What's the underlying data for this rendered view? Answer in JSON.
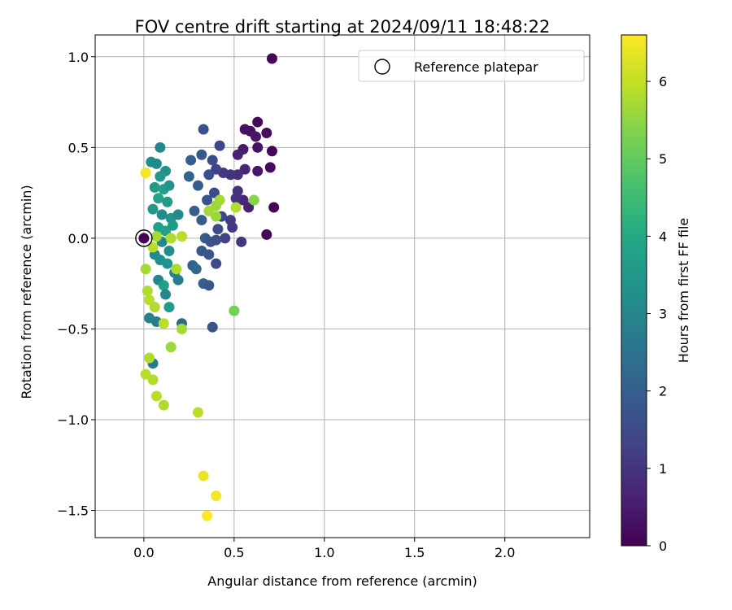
{
  "chart_data": {
    "type": "scatter",
    "title": "FOV centre drift starting at 2024/09/11 18:48:22",
    "xlabel": "Angular distance from reference (arcmin)",
    "ylabel": "Rotation from reference (arcmin)",
    "xlim": [
      -0.27,
      2.47
    ],
    "ylim": [
      -1.65,
      1.12
    ],
    "xticks": [
      0.0,
      0.5,
      1.0,
      1.5,
      2.0
    ],
    "xtick_labels": [
      "0.0",
      "0.5",
      "1.0",
      "1.5",
      "2.0"
    ],
    "yticks": [
      1.0,
      0.5,
      0.0,
      -0.5,
      -1.0,
      -1.5
    ],
    "ytick_labels": [
      "1.0",
      "0.5",
      "0.0",
      "−0.5",
      "−1.0",
      "−1.5"
    ],
    "grid": true,
    "legend": {
      "placement": "top-right",
      "entries": [
        "Reference platepar"
      ]
    },
    "colorbar": {
      "label": "Hours from first FF file",
      "colormap": "viridis",
      "range": [
        0,
        6.6
      ],
      "ticks": [
        0,
        1,
        2,
        3,
        4,
        5,
        6
      ],
      "tick_labels": [
        "0",
        "1",
        "2",
        "3",
        "4",
        "5",
        "6"
      ]
    },
    "reference_point": {
      "x": 0.0,
      "y": 0.0
    },
    "points": [
      {
        "x": 0.71,
        "y": 0.99,
        "h": 0.1
      },
      {
        "x": 0.63,
        "y": 0.64,
        "h": 0.15
      },
      {
        "x": 0.56,
        "y": 0.6,
        "h": 0.3
      },
      {
        "x": 0.59,
        "y": 0.59,
        "h": 0.3
      },
      {
        "x": 0.68,
        "y": 0.58,
        "h": 0.2
      },
      {
        "x": 0.62,
        "y": 0.56,
        "h": 0.4
      },
      {
        "x": 0.33,
        "y": 0.6,
        "h": 1.6
      },
      {
        "x": 0.71,
        "y": 0.48,
        "h": 0.1
      },
      {
        "x": 0.63,
        "y": 0.5,
        "h": 0.3
      },
      {
        "x": 0.55,
        "y": 0.49,
        "h": 0.5
      },
      {
        "x": 0.52,
        "y": 0.46,
        "h": 0.6
      },
      {
        "x": 0.42,
        "y": 0.51,
        "h": 1.4
      },
      {
        "x": 0.32,
        "y": 0.46,
        "h": 1.8
      },
      {
        "x": 0.26,
        "y": 0.43,
        "h": 2.0
      },
      {
        "x": 0.38,
        "y": 0.43,
        "h": 1.5
      },
      {
        "x": 0.56,
        "y": 0.38,
        "h": 0.7
      },
      {
        "x": 0.52,
        "y": 0.35,
        "h": 0.9
      },
      {
        "x": 0.48,
        "y": 0.35,
        "h": 1.0
      },
      {
        "x": 0.44,
        "y": 0.36,
        "h": 1.1
      },
      {
        "x": 0.4,
        "y": 0.38,
        "h": 1.3
      },
      {
        "x": 0.36,
        "y": 0.35,
        "h": 1.6
      },
      {
        "x": 0.63,
        "y": 0.37,
        "h": 0.4
      },
      {
        "x": 0.7,
        "y": 0.39,
        "h": 0.2
      },
      {
        "x": 0.72,
        "y": 0.17,
        "h": 0.05
      },
      {
        "x": 0.68,
        "y": 0.02,
        "h": 0.1
      },
      {
        "x": 0.58,
        "y": 0.17,
        "h": 0.6
      },
      {
        "x": 0.55,
        "y": 0.21,
        "h": 0.7
      },
      {
        "x": 0.52,
        "y": 0.26,
        "h": 0.9
      },
      {
        "x": 0.51,
        "y": 0.22,
        "h": 1.0
      },
      {
        "x": 0.48,
        "y": 0.1,
        "h": 1.2
      },
      {
        "x": 0.43,
        "y": 0.12,
        "h": 1.4
      },
      {
        "x": 0.41,
        "y": 0.05,
        "h": 1.5
      },
      {
        "x": 0.39,
        "y": 0.25,
        "h": 1.5
      },
      {
        "x": 0.35,
        "y": 0.21,
        "h": 1.7
      },
      {
        "x": 0.32,
        "y": 0.1,
        "h": 1.9
      },
      {
        "x": 0.3,
        "y": 0.29,
        "h": 1.9
      },
      {
        "x": 0.28,
        "y": 0.15,
        "h": 2.0
      },
      {
        "x": 0.25,
        "y": 0.34,
        "h": 2.1
      },
      {
        "x": 0.34,
        "y": 0.0,
        "h": 1.9
      },
      {
        "x": 0.37,
        "y": -0.02,
        "h": 1.7
      },
      {
        "x": 0.4,
        "y": -0.01,
        "h": 1.6
      },
      {
        "x": 0.45,
        "y": 0.0,
        "h": 1.3
      },
      {
        "x": 0.54,
        "y": -0.02,
        "h": 1.0
      },
      {
        "x": 0.49,
        "y": 0.06,
        "h": 1.1
      },
      {
        "x": 0.36,
        "y": -0.09,
        "h": 1.7
      },
      {
        "x": 0.32,
        "y": -0.07,
        "h": 1.8
      },
      {
        "x": 0.4,
        "y": -0.14,
        "h": 1.5
      },
      {
        "x": 0.27,
        "y": -0.15,
        "h": 2.1
      },
      {
        "x": 0.29,
        "y": -0.17,
        "h": 2.2
      },
      {
        "x": 0.33,
        "y": -0.25,
        "h": 2.0
      },
      {
        "x": 0.36,
        "y": -0.26,
        "h": 1.8
      },
      {
        "x": 0.38,
        "y": -0.49,
        "h": 1.7
      },
      {
        "x": 0.21,
        "y": -0.47,
        "h": 2.3
      },
      {
        "x": 0.09,
        "y": 0.5,
        "h": 3.0
      },
      {
        "x": 0.04,
        "y": 0.42,
        "h": 3.2
      },
      {
        "x": 0.07,
        "y": 0.41,
        "h": 3.1
      },
      {
        "x": 0.12,
        "y": 0.37,
        "h": 3.3
      },
      {
        "x": 0.09,
        "y": 0.34,
        "h": 3.5
      },
      {
        "x": 0.06,
        "y": 0.28,
        "h": 3.6
      },
      {
        "x": 0.11,
        "y": 0.27,
        "h": 3.7
      },
      {
        "x": 0.14,
        "y": 0.29,
        "h": 3.4
      },
      {
        "x": 0.08,
        "y": 0.22,
        "h": 3.8
      },
      {
        "x": 0.13,
        "y": 0.2,
        "h": 3.6
      },
      {
        "x": 0.05,
        "y": 0.16,
        "h": 3.5
      },
      {
        "x": 0.1,
        "y": 0.13,
        "h": 3.2
      },
      {
        "x": 0.15,
        "y": 0.11,
        "h": 3.4
      },
      {
        "x": 0.19,
        "y": 0.13,
        "h": 3.1
      },
      {
        "x": 0.08,
        "y": 0.06,
        "h": 3.7
      },
      {
        "x": 0.12,
        "y": 0.04,
        "h": 3.8
      },
      {
        "x": 0.16,
        "y": 0.07,
        "h": 3.6
      },
      {
        "x": 0.1,
        "y": -0.02,
        "h": 3.0
      },
      {
        "x": 0.06,
        "y": -0.09,
        "h": 3.1
      },
      {
        "x": 0.14,
        "y": -0.07,
        "h": 3.2
      },
      {
        "x": 0.09,
        "y": -0.12,
        "h": 3.3
      },
      {
        "x": 0.13,
        "y": -0.14,
        "h": 3.4
      },
      {
        "x": 0.17,
        "y": -0.19,
        "h": 2.9
      },
      {
        "x": 0.19,
        "y": -0.23,
        "h": 2.8
      },
      {
        "x": 0.08,
        "y": -0.23,
        "h": 3.0
      },
      {
        "x": 0.11,
        "y": -0.26,
        "h": 3.7
      },
      {
        "x": 0.14,
        "y": -0.38,
        "h": 3.6
      },
      {
        "x": 0.12,
        "y": -0.31,
        "h": 3.1
      },
      {
        "x": 0.03,
        "y": -0.44,
        "h": 2.9
      },
      {
        "x": 0.07,
        "y": -0.46,
        "h": 2.8
      },
      {
        "x": 0.05,
        "y": -0.69,
        "h": 2.7
      },
      {
        "x": 0.01,
        "y": 0.36,
        "h": 6.5
      },
      {
        "x": 0.42,
        "y": 0.21,
        "h": 5.7
      },
      {
        "x": 0.4,
        "y": 0.18,
        "h": 5.6
      },
      {
        "x": 0.36,
        "y": 0.15,
        "h": 5.7
      },
      {
        "x": 0.4,
        "y": 0.12,
        "h": 5.6
      },
      {
        "x": 0.51,
        "y": 0.17,
        "h": 5.8
      },
      {
        "x": 0.61,
        "y": 0.21,
        "h": 5.4
      },
      {
        "x": 0.07,
        "y": 0.01,
        "h": 5.7
      },
      {
        "x": 0.15,
        "y": 0.0,
        "h": 5.8
      },
      {
        "x": 0.21,
        "y": 0.01,
        "h": 5.9
      },
      {
        "x": 0.05,
        "y": -0.05,
        "h": 5.9
      },
      {
        "x": 0.18,
        "y": -0.17,
        "h": 5.8
      },
      {
        "x": 0.01,
        "y": -0.17,
        "h": 5.7
      },
      {
        "x": 0.02,
        "y": -0.29,
        "h": 5.8
      },
      {
        "x": 0.03,
        "y": -0.34,
        "h": 5.9
      },
      {
        "x": 0.06,
        "y": -0.38,
        "h": 5.8
      },
      {
        "x": 0.11,
        "y": -0.47,
        "h": 5.9
      },
      {
        "x": 0.21,
        "y": -0.5,
        "h": 5.7
      },
      {
        "x": 0.5,
        "y": -0.4,
        "h": 5.2
      },
      {
        "x": 0.15,
        "y": -0.6,
        "h": 5.6
      },
      {
        "x": 0.03,
        "y": -0.66,
        "h": 5.8
      },
      {
        "x": 0.01,
        "y": -0.75,
        "h": 5.9
      },
      {
        "x": 0.05,
        "y": -0.78,
        "h": 5.8
      },
      {
        "x": 0.07,
        "y": -0.87,
        "h": 5.9
      },
      {
        "x": 0.11,
        "y": -0.92,
        "h": 5.8
      },
      {
        "x": 0.3,
        "y": -0.96,
        "h": 5.9
      },
      {
        "x": 0.33,
        "y": -1.31,
        "h": 6.4
      },
      {
        "x": 0.4,
        "y": -1.42,
        "h": 6.5
      },
      {
        "x": 0.35,
        "y": -1.53,
        "h": 6.6
      }
    ]
  }
}
